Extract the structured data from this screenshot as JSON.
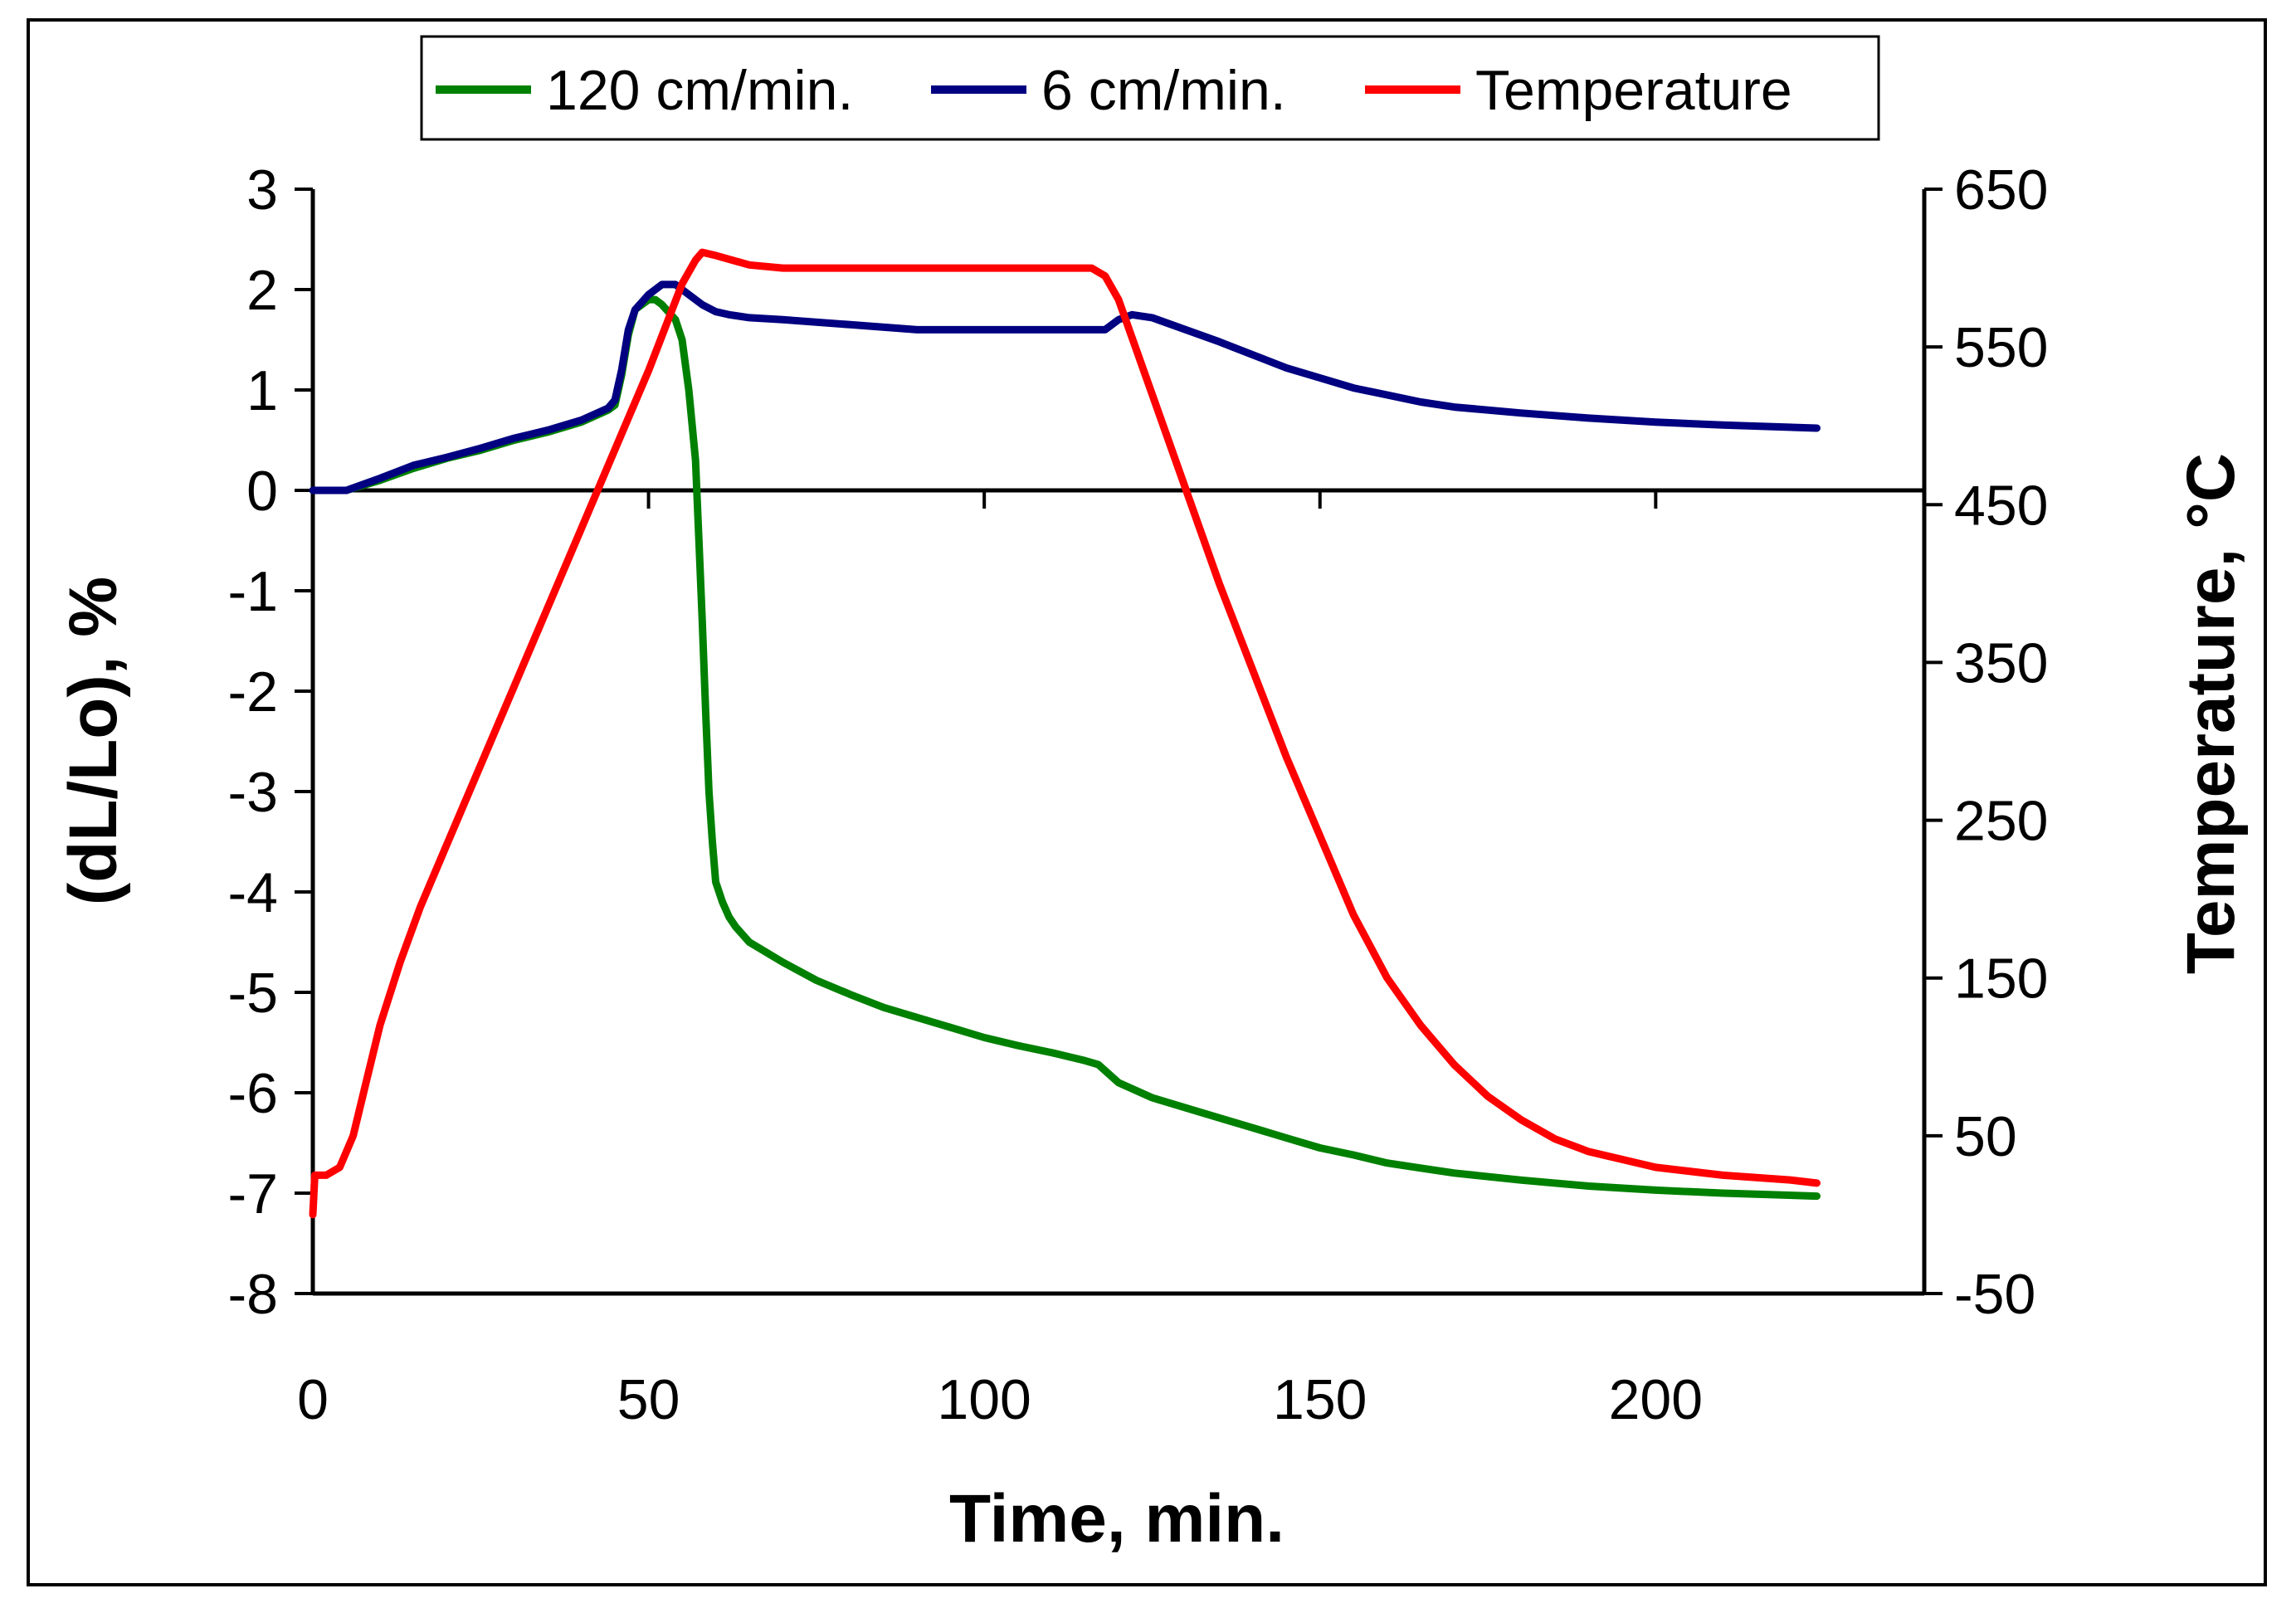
{
  "chart_data": {
    "type": "line",
    "title": "",
    "xlabel": "Time, min.",
    "ylabel": "(dL/Lo),  %",
    "y2label": "Temperature,  °C",
    "xlim": [
      0,
      240
    ],
    "ylim": [
      -8,
      3
    ],
    "y2lim": [
      -50,
      650
    ],
    "x_ticks": [
      "0",
      "50",
      "100",
      "150",
      "200"
    ],
    "x_tick_values": [
      0,
      50,
      100,
      150,
      200
    ],
    "y_ticks": [
      "3",
      "2",
      "1",
      "0",
      "-1",
      "-2",
      "-3",
      "-4",
      "-5",
      "-6",
      "-7",
      "-8"
    ],
    "y_tick_values": [
      3,
      2,
      1,
      0,
      -1,
      -2,
      -3,
      -4,
      -5,
      -6,
      -7,
      -8
    ],
    "y2_ticks": [
      "650",
      "550",
      "450",
      "350",
      "250",
      "150",
      "50",
      "-50"
    ],
    "y2_tick_values": [
      650,
      550,
      450,
      350,
      250,
      150,
      50,
      -50
    ],
    "legend_position": "top-center",
    "colors": {
      "green": "#008000",
      "navy": "#000080",
      "red": "#ff0000",
      "axis": "#000000"
    },
    "series": [
      {
        "name": "120 cm/min.",
        "axis": "left",
        "color": "#008000",
        "x": [
          0,
          5,
          10,
          15,
          20,
          25,
          30,
          35,
          40,
          44,
          45,
          46,
          47,
          48,
          50,
          51,
          52,
          54,
          55,
          56,
          57,
          57.5,
          58,
          58.5,
          59,
          59.5,
          60,
          61,
          62,
          63,
          65,
          68,
          70,
          75,
          80,
          85,
          90,
          95,
          100,
          105,
          110,
          115,
          117,
          120,
          125,
          130,
          135,
          140,
          145,
          150,
          155,
          160,
          165,
          170,
          180,
          190,
          200,
          210,
          224
        ],
        "values": [
          0,
          0,
          0.1,
          0.22,
          0.32,
          0.4,
          0.5,
          0.58,
          0.68,
          0.8,
          0.85,
          1.15,
          1.55,
          1.8,
          1.9,
          1.9,
          1.85,
          1.7,
          1.5,
          1.0,
          0.3,
          -0.5,
          -1.3,
          -2.2,
          -3.0,
          -3.5,
          -3.9,
          -4.1,
          -4.25,
          -4.35,
          -4.5,
          -4.62,
          -4.7,
          -4.88,
          -5.02,
          -5.15,
          -5.25,
          -5.35,
          -5.45,
          -5.53,
          -5.6,
          -5.68,
          -5.72,
          -5.9,
          -6.05,
          -6.15,
          -6.25,
          -6.35,
          -6.45,
          -6.55,
          -6.62,
          -6.7,
          -6.75,
          -6.8,
          -6.87,
          -6.93,
          -6.97,
          -7.0,
          -7.03
        ]
      },
      {
        "name": "6 cm/min.",
        "axis": "left",
        "color": "#000080",
        "x": [
          0,
          5,
          10,
          15,
          20,
          25,
          30,
          35,
          40,
          44,
          45,
          46,
          47,
          48,
          50,
          52,
          54,
          56,
          58,
          60,
          62,
          65,
          70,
          80,
          90,
          100,
          110,
          115,
          118,
          120,
          122,
          125,
          130,
          135,
          140,
          145,
          150,
          155,
          160,
          165,
          170,
          180,
          190,
          200,
          210,
          224
        ],
        "values": [
          0,
          0,
          0.12,
          0.25,
          0.33,
          0.42,
          0.52,
          0.6,
          0.7,
          0.82,
          0.9,
          1.2,
          1.6,
          1.8,
          1.95,
          2.05,
          2.05,
          1.95,
          1.85,
          1.78,
          1.75,
          1.72,
          1.7,
          1.65,
          1.6,
          1.6,
          1.6,
          1.6,
          1.6,
          1.7,
          1.75,
          1.72,
          1.6,
          1.48,
          1.35,
          1.22,
          1.12,
          1.02,
          0.95,
          0.88,
          0.83,
          0.77,
          0.72,
          0.68,
          0.65,
          0.62
        ]
      },
      {
        "name": "Temperature",
        "axis": "right",
        "color": "#ff0000",
        "x": [
          0,
          0.3,
          2,
          4,
          6,
          8,
          10,
          13,
          16,
          20,
          25,
          30,
          35,
          40,
          45,
          50,
          55,
          57,
          58,
          60,
          65,
          70,
          80,
          100,
          110,
          116,
          118,
          120,
          125,
          130,
          135,
          140,
          145,
          150,
          155,
          160,
          165,
          170,
          175,
          180,
          185,
          190,
          195,
          200,
          210,
          220,
          224
        ],
        "values": [
          0,
          25,
          25,
          30,
          50,
          85,
          120,
          160,
          195,
          235,
          285,
          335,
          385,
          435,
          485,
          535,
          590,
          605,
          610,
          608,
          602,
          600,
          600,
          600,
          600,
          600,
          595,
          580,
          520,
          460,
          400,
          345,
          290,
          240,
          190,
          150,
          120,
          95,
          75,
          60,
          48,
          40,
          35,
          30,
          25,
          22,
          20
        ]
      }
    ]
  }
}
